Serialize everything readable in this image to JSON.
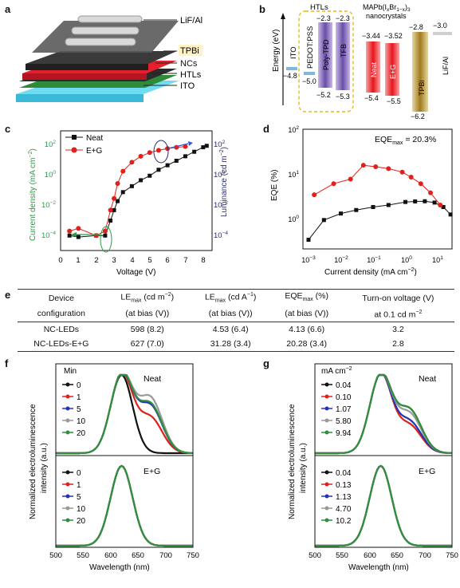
{
  "panel_labels": {
    "a": "a",
    "b": "b",
    "c": "c",
    "d": "d",
    "e": "e",
    "f": "f",
    "g": "g"
  },
  "colors": {
    "neat": "#111111",
    "eg": "#e0201b",
    "green_axis": "#2e9a46",
    "navy_axis": "#2a2a7a",
    "blue_arrow": "#2f5bd0",
    "outline": "#6fa8a0"
  },
  "panel_a": {
    "layers": [
      "LiF/Al",
      "TPBi",
      "NCs",
      "HTLs",
      "ITO"
    ]
  },
  "panel_b": {
    "ylabel": "Energy (eV)",
    "header_htls": "HTLs",
    "header_nc_line1": "MAPb(I",
    "header_nc_sub1": "x",
    "header_nc_mid": "Br",
    "header_nc_sub2": "1−x",
    "header_nc_end": ")",
    "header_nc_sub3": "3",
    "header_nc_line2": "nanocrystals",
    "layers": [
      {
        "name": "ITO",
        "top": "",
        "bottom": "",
        "value": "−4.8"
      },
      {
        "name": "PEDOT:PSS",
        "top": "",
        "bottom": "−5.0"
      },
      {
        "name": "Poly-TPD",
        "top": "−2.3",
        "bottom": "−5.2"
      },
      {
        "name": "TFB",
        "top": "−2.3",
        "bottom": "−5.3"
      },
      {
        "name": "Neat",
        "top": "−3.44",
        "bottom": "−5.4"
      },
      {
        "name": "E+G",
        "top": "−3.52",
        "bottom": "−5.5"
      },
      {
        "name": "TPBi",
        "top": "−2.8",
        "bottom": "−6.2"
      },
      {
        "name": "LiF/Al",
        "top": "−3.0",
        "bottom": ""
      }
    ]
  },
  "panel_c": {
    "xlabel": "Voltage (V)",
    "ylabel_left": "Current density (mA cm",
    "ylabel_left_sup": "−2",
    "ylabel_left_end": ")",
    "ylabel_right": "Luminance (cd m",
    "ylabel_right_sup": "−2",
    "ylabel_right_end": ")",
    "legend": [
      "Neat",
      "E+G"
    ],
    "xticks": [
      "0",
      "1",
      "2",
      "3",
      "4",
      "5",
      "6",
      "7",
      "8"
    ],
    "yticks_left": [
      "10",
      "10",
      "10",
      "10"
    ],
    "yticks_left_exp": [
      "2",
      "0",
      "−2",
      "−4"
    ],
    "yticks_right": [
      "10",
      "10",
      "10"
    ],
    "yticks_right_exp": [
      "2",
      "0",
      "−4"
    ],
    "yticks_right_mid_exp": "−2"
  },
  "panel_d": {
    "xlabel": "Current density (mA cm",
    "xlabel_sup": "−2",
    "xlabel_end": ")",
    "ylabel": "EQE (%)",
    "annotation": "EQE",
    "annotation_sub": "max",
    "annotation_val": " = 20.3%",
    "xticks": [
      "10",
      "10",
      "10",
      "10",
      "10"
    ],
    "xticks_exp": [
      "−3",
      "−2",
      "−1",
      "0",
      "1"
    ],
    "yticks": [
      "10",
      "10",
      "10"
    ],
    "yticks_exp": [
      "2",
      "1",
      "0"
    ]
  },
  "table": {
    "headers": [
      {
        "l1": "Device",
        "l2": "configuration"
      },
      {
        "l1a": "LE",
        "l1sub": "max",
        "l1b": " (cd m",
        "l1sup": "−2",
        "l1c": ")",
        "l2": "(at bias (V))"
      },
      {
        "l1a": "LE",
        "l1sub": "max",
        "l1b": " (cd A",
        "l1sup": "−1",
        "l1c": ")",
        "l2": "(at bias (V))"
      },
      {
        "l1a": "EQE",
        "l1sub": "max",
        "l1b": " (%)",
        "l1sup": "",
        "l1c": "",
        "l2": "(at bias (V))"
      },
      {
        "l1": "Turn-on voltage (V)",
        "l2a": "at 0.1 cd m",
        "l2sup": "−2"
      }
    ],
    "rows": [
      [
        "NC-LEDs",
        "598 (8.2)",
        "4.53 (6.4)",
        "4.13 (6.6)",
        "3.2"
      ],
      [
        "NC-LEDs-E+G",
        "627 (7.0)",
        "31.28 (3.4)",
        "20.28 (3.4)",
        "2.8"
      ]
    ]
  },
  "panel_f": {
    "xlabel": "Wavelength (nm)",
    "ylabel_l1": "Normalized electroluminescence",
    "ylabel_l2": "intensity (a.u.)",
    "legend_title": "Min",
    "label_top": "Neat",
    "label_bottom": "E+G",
    "legend_top": [
      "0",
      "1",
      "5",
      "10",
      "20"
    ],
    "legend_bottom": [
      "0",
      "1",
      "5",
      "10",
      "20"
    ],
    "xticks": [
      "500",
      "550",
      "600",
      "650",
      "700",
      "750"
    ]
  },
  "panel_g": {
    "xlabel": "Wavelength (nm)",
    "ylabel_l1": "Normalized electroluminescence",
    "ylabel_l2": "intensity (a.u.)",
    "legend_title": "mA cm",
    "legend_title_sup": "−2",
    "label_top": "Neat",
    "label_bottom": "E+G",
    "legend_top": [
      "0.04",
      "0.10",
      "1.07",
      "5.80",
      "9.94"
    ],
    "legend_bottom": [
      "0.04",
      "0.13",
      "1.13",
      "4.70",
      "10.2"
    ],
    "xticks": [
      "500",
      "550",
      "600",
      "650",
      "700",
      "750"
    ]
  },
  "series_colors": [
    "#111111",
    "#e0201b",
    "#2233bb",
    "#999999",
    "#2f8f3a"
  ],
  "chart_data": [
    {
      "panel": "c",
      "type": "scatter",
      "xlabel": "Voltage (V)",
      "ylabel": "Current density (mA cm−2) / Luminance (cd m−2)",
      "xlim": [
        0,
        8.5
      ],
      "series": [
        {
          "name": "Neat",
          "x": [
            0.5,
            1.0,
            2.0,
            2.5,
            2.8,
            3.0,
            3.2,
            3.5,
            4.0,
            4.5,
            5.0,
            5.5,
            6.0,
            6.5,
            7.0,
            7.5,
            8.0,
            8.2
          ],
          "y": [
            0.0001,
            8e-05,
            0.0001,
            0.0001,
            0.001,
            0.005,
            0.02,
            0.08,
            0.2,
            0.5,
            1.0,
            2.5,
            5,
            10,
            20,
            40,
            80,
            100
          ]
        },
        {
          "name": "E+G",
          "x": [
            0.5,
            1.0,
            2.0,
            2.5,
            2.8,
            3.0,
            3.2,
            3.5,
            4.0,
            4.5,
            5.0,
            5.5,
            6.0,
            6.5,
            7.0
          ],
          "y": [
            0.0002,
            0.0003,
            0.0001,
            0.0002,
            0.005,
            0.03,
            0.3,
            2,
            8,
            20,
            35,
            50,
            65,
            80,
            90
          ]
        }
      ]
    },
    {
      "panel": "d",
      "type": "scatter",
      "xlabel": "Current density (mA cm−2)",
      "ylabel": "EQE (%)",
      "xscale": "log",
      "yscale": "log",
      "xlim": [
        0.0005,
        40
      ],
      "ylim": [
        0.5,
        100
      ],
      "series": [
        {
          "name": "Neat",
          "x": [
            0.001,
            0.003,
            0.01,
            0.03,
            0.1,
            0.3,
            1,
            2,
            4,
            8,
            15,
            25
          ],
          "y": [
            0.75,
            1.8,
            2.4,
            2.8,
            3.2,
            3.5,
            4.0,
            4.1,
            4.13,
            3.9,
            3.2,
            2.3
          ]
        },
        {
          "name": "E+G",
          "x": [
            0.0015,
            0.006,
            0.02,
            0.05,
            0.12,
            0.3,
            0.8,
            1.5,
            3,
            6,
            12
          ],
          "y": [
            5.5,
            9,
            11,
            20.3,
            19,
            17.5,
            15,
            12,
            9,
            6,
            3.5
          ]
        }
      ]
    }
  ]
}
